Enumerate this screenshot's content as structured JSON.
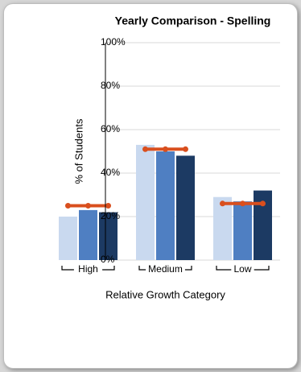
{
  "colors": {
    "card": "#ffffff",
    "grid": "#d9d9d9",
    "axis": "#000000",
    "ref_line": "#d94f1e",
    "series": [
      "#1c3a63",
      "#4f7fc2",
      "#c9d9ef"
    ]
  },
  "chart_data": {
    "type": "bar",
    "orientation": "horizontal",
    "rotated_view": "90deg clockwise",
    "title": "Yearly Comparison - Spelling",
    "xlabel": "% of Students",
    "ylabel": "Relative Growth Category",
    "xlim": [
      0,
      100
    ],
    "x_ticks": [
      "0%",
      "20%",
      "40%",
      "60%",
      "80%",
      "100%"
    ],
    "categories": [
      "Low",
      "Medium",
      "High"
    ],
    "series": [
      {
        "values": [
          32,
          48,
          22
        ]
      },
      {
        "values": [
          27,
          50,
          23
        ]
      },
      {
        "values": [
          29,
          53,
          20
        ]
      }
    ],
    "reference_values": [
      26,
      51,
      25
    ],
    "grid": true,
    "legend": "none"
  }
}
